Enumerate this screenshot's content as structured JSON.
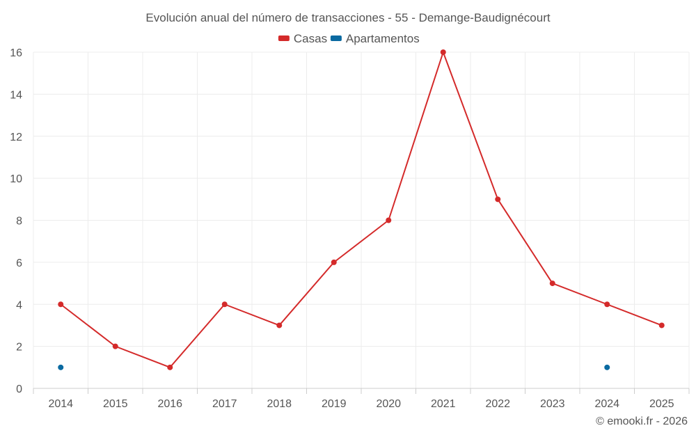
{
  "chart_data": {
    "type": "line",
    "title": "Evolución anual del número de transacciones - 55 - Demange-Baudignécourt",
    "categories": [
      "2014",
      "2015",
      "2016",
      "2017",
      "2018",
      "2019",
      "2020",
      "2021",
      "2022",
      "2023",
      "2024",
      "2025"
    ],
    "series": [
      {
        "name": "Casas",
        "color": "#d42a2a",
        "values": [
          4,
          2,
          1,
          4,
          3,
          6,
          8,
          16,
          9,
          5,
          4,
          3
        ]
      },
      {
        "name": "Apartamentos",
        "color": "#0a6aa1",
        "values": [
          1,
          null,
          null,
          null,
          null,
          null,
          null,
          null,
          null,
          null,
          1,
          null
        ]
      }
    ],
    "ylim": [
      0,
      16
    ],
    "yticks": [
      0,
      2,
      4,
      6,
      8,
      10,
      12,
      14,
      16
    ],
    "grid": true,
    "legend_position": "top-center",
    "credit": "© emooki.fr - 2026"
  }
}
